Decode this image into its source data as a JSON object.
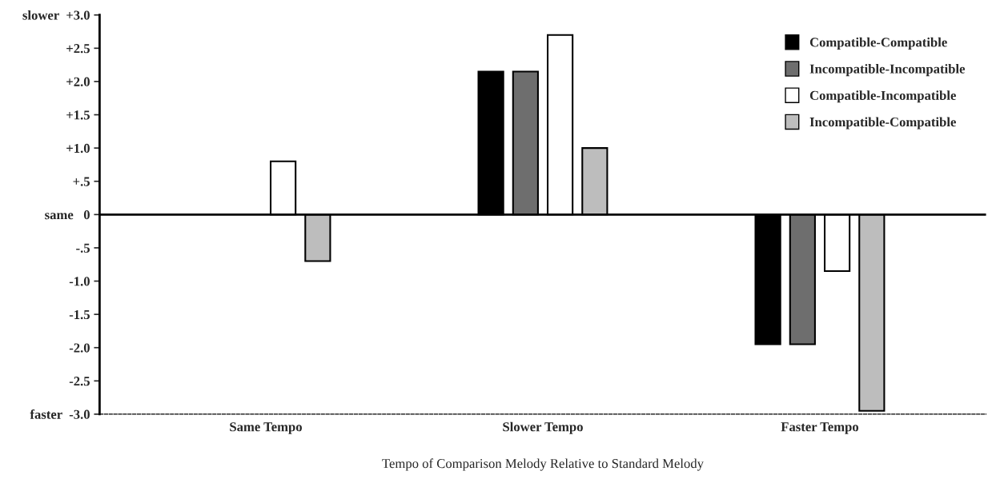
{
  "chart_data": {
    "type": "bar",
    "xlabel": "Tempo of Comparison Melody Relative to Standard Melody",
    "categories": [
      "Same Tempo",
      "Slower Tempo",
      "Faster Tempo"
    ],
    "series": [
      {
        "name": "Compatible-Compatible",
        "color": "#000000",
        "values": [
          null,
          2.15,
          -1.95
        ]
      },
      {
        "name": "Incompatible-Incompatible",
        "color": "#6e6e6e",
        "values": [
          null,
          2.15,
          -1.95
        ]
      },
      {
        "name": "Compatible-Incompatible",
        "color": "#ffffff",
        "values": [
          0.8,
          2.7,
          -0.85
        ]
      },
      {
        "name": "Incompatible-Compatible",
        "color": "#bdbdbd",
        "values": [
          -0.7,
          1.0,
          -2.95
        ]
      }
    ],
    "ylim": [
      -3.0,
      3.0
    ],
    "yticks": [
      {
        "value": 3.0,
        "label": "slower  +3.0"
      },
      {
        "value": 2.5,
        "label": "+2.5"
      },
      {
        "value": 2.0,
        "label": "+2.0"
      },
      {
        "value": 1.5,
        "label": "+1.5"
      },
      {
        "value": 1.0,
        "label": "+1.0"
      },
      {
        "value": 0.5,
        "label": "+.5"
      },
      {
        "value": 0,
        "label": "same   0"
      },
      {
        "value": -0.5,
        "label": "-.5"
      },
      {
        "value": -1.0,
        "label": "-1.0"
      },
      {
        "value": -1.5,
        "label": "-1.5"
      },
      {
        "value": -2.0,
        "label": "-2.0"
      },
      {
        "value": -2.5,
        "label": "-2.5"
      },
      {
        "value": -3.0,
        "label": "faster  -3.0"
      }
    ],
    "ref_lines": [
      {
        "axis": "y",
        "value": 0,
        "color": "#000000",
        "line_style": "solid"
      }
    ],
    "legend": "top right",
    "grid": false
  }
}
